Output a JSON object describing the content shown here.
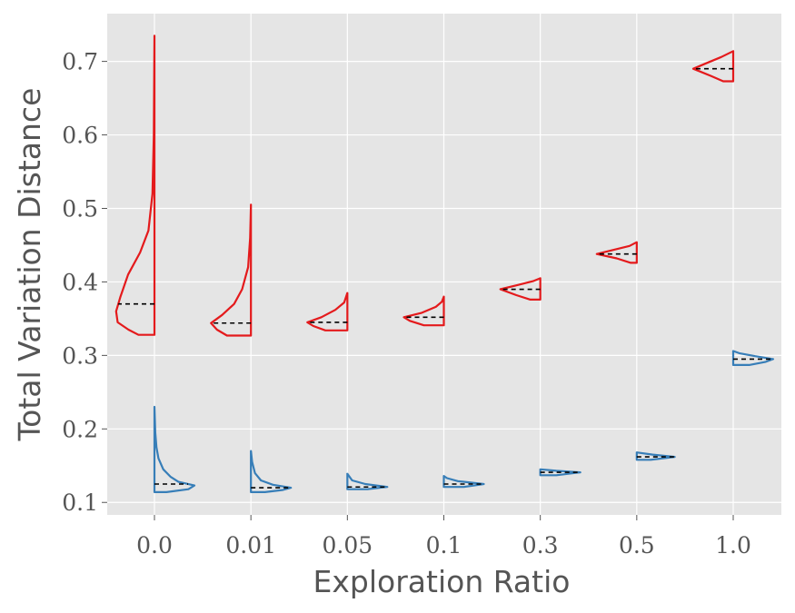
{
  "chart_data": {
    "type": "violin",
    "xlabel": "Exploration Ratio",
    "ylabel": "Total Variation Distance",
    "categories": [
      "0.0",
      "0.01",
      "0.05",
      "0.1",
      "0.3",
      "0.5",
      "1.0"
    ],
    "ylim": [
      0.083,
      0.765
    ],
    "yticks": [
      "0.1",
      "0.2",
      "0.3",
      "0.4",
      "0.5",
      "0.6",
      "0.7"
    ],
    "grid": true,
    "series": [
      {
        "color": "#e41a1c",
        "side": "left",
        "violins": [
          {
            "category": "0.0",
            "min": 0.328,
            "max": 0.735,
            "median": 0.37,
            "profile": [
              [
                0.328,
                0.4
              ],
              [
                0.335,
                0.65
              ],
              [
                0.345,
                0.92
              ],
              [
                0.36,
                0.96
              ],
              [
                0.38,
                0.85
              ],
              [
                0.41,
                0.66
              ],
              [
                0.44,
                0.36
              ],
              [
                0.47,
                0.15
              ],
              [
                0.52,
                0.05
              ],
              [
                0.6,
                0.015
              ],
              [
                0.7,
                0.005
              ],
              [
                0.735,
                0
              ]
            ]
          },
          {
            "category": "0.01",
            "min": 0.327,
            "max": 0.505,
            "median": 0.344,
            "profile": [
              [
                0.327,
                0.6
              ],
              [
                0.335,
                0.85
              ],
              [
                0.344,
                1.0
              ],
              [
                0.355,
                0.72
              ],
              [
                0.37,
                0.42
              ],
              [
                0.39,
                0.22
              ],
              [
                0.42,
                0.07
              ],
              [
                0.46,
                0.02
              ],
              [
                0.505,
                0
              ]
            ]
          },
          {
            "category": "0.05",
            "min": 0.334,
            "max": 0.385,
            "median": 0.345,
            "profile": [
              [
                0.334,
                0.55
              ],
              [
                0.34,
                0.85
              ],
              [
                0.345,
                1.0
              ],
              [
                0.352,
                0.65
              ],
              [
                0.362,
                0.3
              ],
              [
                0.372,
                0.08
              ],
              [
                0.385,
                0
              ]
            ]
          },
          {
            "category": "0.1",
            "min": 0.341,
            "max": 0.38,
            "median": 0.352,
            "profile": [
              [
                0.341,
                0.5
              ],
              [
                0.347,
                0.85
              ],
              [
                0.352,
                1.0
              ],
              [
                0.358,
                0.55
              ],
              [
                0.366,
                0.2
              ],
              [
                0.373,
                0.05
              ],
              [
                0.38,
                0
              ]
            ]
          },
          {
            "category": "0.3",
            "min": 0.376,
            "max": 0.405,
            "median": 0.39,
            "profile": [
              [
                0.376,
                0.25
              ],
              [
                0.382,
                0.6
              ],
              [
                0.39,
                1.0
              ],
              [
                0.396,
                0.55
              ],
              [
                0.401,
                0.18
              ],
              [
                0.405,
                0
              ]
            ]
          },
          {
            "category": "0.5",
            "min": 0.426,
            "max": 0.454,
            "median": 0.438,
            "profile": [
              [
                0.426,
                0.15
              ],
              [
                0.432,
                0.5
              ],
              [
                0.438,
                1.0
              ],
              [
                0.444,
                0.55
              ],
              [
                0.449,
                0.18
              ],
              [
                0.454,
                0
              ]
            ]
          },
          {
            "category": "1.0",
            "min": 0.673,
            "max": 0.714,
            "median": 0.69,
            "profile": [
              [
                0.673,
                0.25
              ],
              [
                0.68,
                0.55
              ],
              [
                0.69,
                1.0
              ],
              [
                0.698,
                0.65
              ],
              [
                0.706,
                0.3
              ],
              [
                0.714,
                0
              ]
            ]
          }
        ]
      },
      {
        "color": "#377eb8",
        "side": "right",
        "violins": [
          {
            "category": "0.0",
            "min": 0.114,
            "max": 0.23,
            "median": 0.125,
            "profile": [
              [
                0.114,
                0.3
              ],
              [
                0.118,
                0.85
              ],
              [
                0.123,
                1.0
              ],
              [
                0.128,
                0.6
              ],
              [
                0.135,
                0.4
              ],
              [
                0.145,
                0.22
              ],
              [
                0.16,
                0.1
              ],
              [
                0.175,
                0.05
              ],
              [
                0.195,
                0.02
              ],
              [
                0.23,
                0
              ]
            ]
          },
          {
            "category": "0.01",
            "min": 0.114,
            "max": 0.17,
            "median": 0.12,
            "profile": [
              [
                0.114,
                0.35
              ],
              [
                0.117,
                0.8
              ],
              [
                0.12,
                1.0
              ],
              [
                0.124,
                0.55
              ],
              [
                0.13,
                0.25
              ],
              [
                0.14,
                0.1
              ],
              [
                0.155,
                0.03
              ],
              [
                0.17,
                0
              ]
            ]
          },
          {
            "category": "0.05",
            "min": 0.118,
            "max": 0.139,
            "median": 0.121,
            "profile": [
              [
                0.118,
                0.5
              ],
              [
                0.121,
                1.0
              ],
              [
                0.125,
                0.45
              ],
              [
                0.13,
                0.12
              ],
              [
                0.139,
                0
              ]
            ]
          },
          {
            "category": "0.1",
            "min": 0.121,
            "max": 0.136,
            "median": 0.125,
            "profile": [
              [
                0.121,
                0.5
              ],
              [
                0.125,
                1.0
              ],
              [
                0.129,
                0.35
              ],
              [
                0.133,
                0.08
              ],
              [
                0.136,
                0
              ]
            ]
          },
          {
            "category": "0.3",
            "min": 0.137,
            "max": 0.145,
            "median": 0.141,
            "profile": [
              [
                0.137,
                0.4
              ],
              [
                0.141,
                1.0
              ],
              [
                0.143,
                0.4
              ],
              [
                0.145,
                0
              ]
            ]
          },
          {
            "category": "0.5",
            "min": 0.158,
            "max": 0.168,
            "median": 0.162,
            "profile": [
              [
                0.158,
                0.35
              ],
              [
                0.162,
                0.95
              ],
              [
                0.165,
                0.4
              ],
              [
                0.168,
                0
              ]
            ]
          },
          {
            "category": "1.0",
            "min": 0.287,
            "max": 0.306,
            "median": 0.295,
            "profile": [
              [
                0.287,
                0.4
              ],
              [
                0.291,
                0.8
              ],
              [
                0.295,
                1.0
              ],
              [
                0.299,
                0.55
              ],
              [
                0.303,
                0.15
              ],
              [
                0.306,
                0
              ]
            ]
          }
        ]
      }
    ]
  }
}
